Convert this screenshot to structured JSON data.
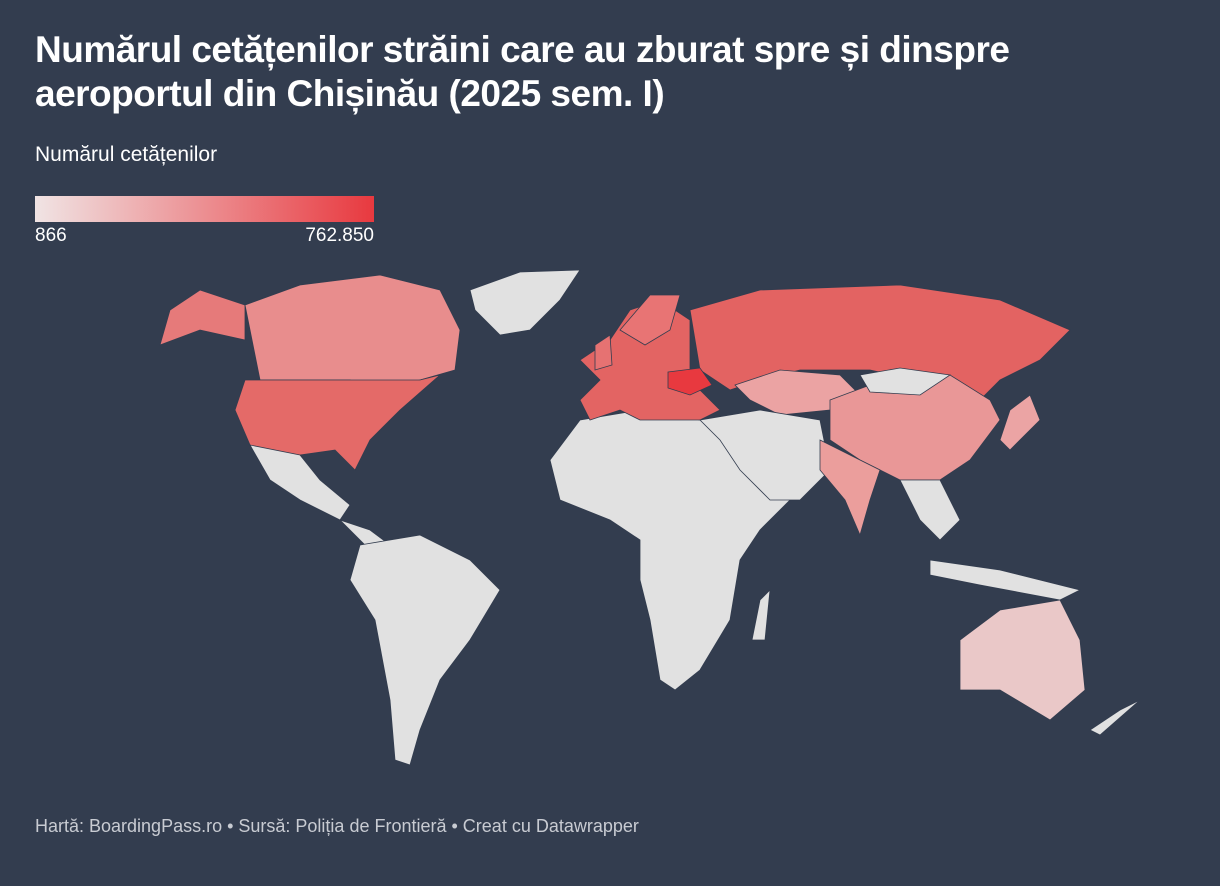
{
  "header": {
    "title": "Numărul cetățenilor străini care au zburat spre și dinspre aeroportul din Chișinău (2025 sem. I)"
  },
  "legend": {
    "title": "Numărul cetățenilor",
    "min": 866,
    "max": {
      "value": 762850,
      "label": "762.850"
    },
    "colors": [
      "#f0e4e4",
      "#e8393f"
    ]
  },
  "footer": "Hartă: BoardingPass.ro • Sursă: Poliția de Frontieră • Creat cu Datawrapper"
}
